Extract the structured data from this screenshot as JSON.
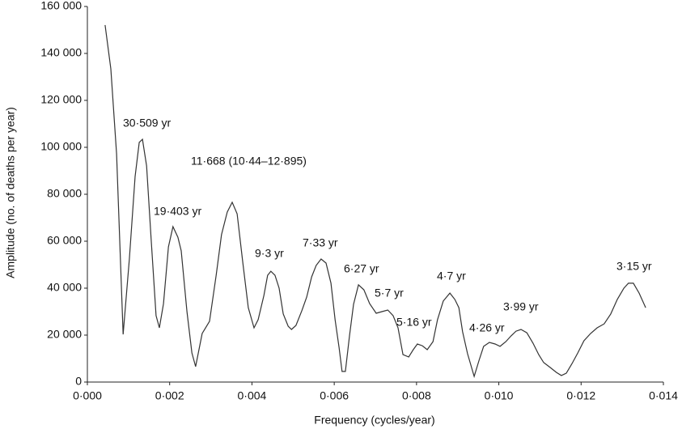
{
  "chart_data": {
    "type": "line",
    "x_label": "Frequency (cycles/year)",
    "y_label": "Amplitude (no. of deaths per year)",
    "color": "#333333",
    "grid": false,
    "xlim": [
      0,
      0.014
    ],
    "ylim": [
      0,
      160000
    ],
    "xticks": [
      {
        "value": 0,
        "label": "0·000"
      },
      {
        "value": 0.002,
        "label": "0·002"
      },
      {
        "value": 0.004,
        "label": "0·004"
      },
      {
        "value": 0.006,
        "label": "0·006"
      },
      {
        "value": 0.008,
        "label": "0·008"
      },
      {
        "value": 0.01,
        "label": "0·010"
      },
      {
        "value": 0.012,
        "label": "0·012"
      },
      {
        "value": 0.014,
        "label": "0·014"
      }
    ],
    "yticks": [
      0,
      {
        "value": 20000,
        "label": "20 000"
      },
      {
        "value": 40000,
        "label": "40 000"
      },
      {
        "value": 60000,
        "label": "60 000"
      },
      {
        "value": 80000,
        "label": "80 000"
      },
      {
        "value": 100000,
        "label": "100 000"
      },
      {
        "value": 120000,
        "label": "120 000"
      },
      {
        "value": 140000,
        "label": "140 000"
      },
      {
        "value": 160000,
        "label": "160 000"
      }
    ],
    "annotations": [
      "30·509 yr",
      "11·668 (10·44–12·895)",
      "19·403 yr",
      "9·3 yr",
      "7·33 yr",
      "6·27 yr",
      "5·7 yr",
      "5·16 yr",
      "4·7 yr",
      "4·26 yr",
      "3·99 yr",
      "3·15 yr"
    ],
    "x": [
      0.00043,
      0.00057,
      0.00071,
      0.00087,
      0.00102,
      0.00116,
      0.00126,
      0.00134,
      0.00144,
      0.00155,
      0.00167,
      0.00175,
      0.00185,
      0.00197,
      0.00208,
      0.0022,
      0.00228,
      0.00242,
      0.00254,
      0.00263,
      0.00279,
      0.00297,
      0.00313,
      0.00326,
      0.0034,
      0.00352,
      0.00364,
      0.00378,
      0.00391,
      0.00405,
      0.00415,
      0.00429,
      0.00438,
      0.00446,
      0.00456,
      0.00466,
      0.00476,
      0.00488,
      0.00496,
      0.00507,
      0.00521,
      0.00533,
      0.00545,
      0.00556,
      0.00568,
      0.0058,
      0.00592,
      0.00602,
      0.00612,
      0.00619,
      0.00627,
      0.00637,
      0.00647,
      0.00659,
      0.00672,
      0.00686,
      0.00702,
      0.00716,
      0.0073,
      0.00743,
      0.00755,
      0.00767,
      0.00781,
      0.00792,
      0.00802,
      0.00814,
      0.00826,
      0.0084,
      0.00851,
      0.00865,
      0.00881,
      0.00893,
      0.00903,
      0.00912,
      0.00924,
      0.0094,
      0.00952,
      0.00963,
      0.00977,
      0.00991,
      0.01003,
      0.01017,
      0.0103,
      0.01042,
      0.01054,
      0.01068,
      0.01083,
      0.01097,
      0.01109,
      0.01125,
      0.0114,
      0.01152,
      0.01164,
      0.01178,
      0.01192,
      0.01207,
      0.01223,
      0.01239,
      0.01256,
      0.01272,
      0.01288,
      0.01304,
      0.01315,
      0.01327,
      0.01341,
      0.01357
    ],
    "values": [
      152100,
      133400,
      97200,
      20300,
      52400,
      87600,
      102100,
      103400,
      92100,
      61000,
      28300,
      23100,
      33400,
      57600,
      66200,
      61700,
      55900,
      30000,
      12400,
      6600,
      20700,
      25900,
      45500,
      62800,
      72400,
      76600,
      71700,
      50700,
      31700,
      23100,
      26600,
      36900,
      45500,
      47200,
      45500,
      40000,
      29000,
      23800,
      22400,
      24100,
      30300,
      36200,
      44800,
      49700,
      52400,
      50700,
      42100,
      26600,
      14500,
      4500,
      4500,
      19700,
      33100,
      41400,
      39300,
      33400,
      29300,
      30000,
      30700,
      28300,
      23100,
      11700,
      10700,
      13800,
      16200,
      15500,
      13800,
      17200,
      26600,
      34500,
      37900,
      35200,
      31700,
      21400,
      12100,
      2400,
      9300,
      15200,
      16900,
      16200,
      15200,
      17200,
      19700,
      21700,
      22400,
      21000,
      16600,
      11700,
      8300,
      6200,
      4100,
      2800,
      3800,
      7900,
      12400,
      17600,
      20700,
      23100,
      24800,
      29000,
      35200,
      40000,
      42100,
      42100,
      37900,
      31700
    ]
  }
}
